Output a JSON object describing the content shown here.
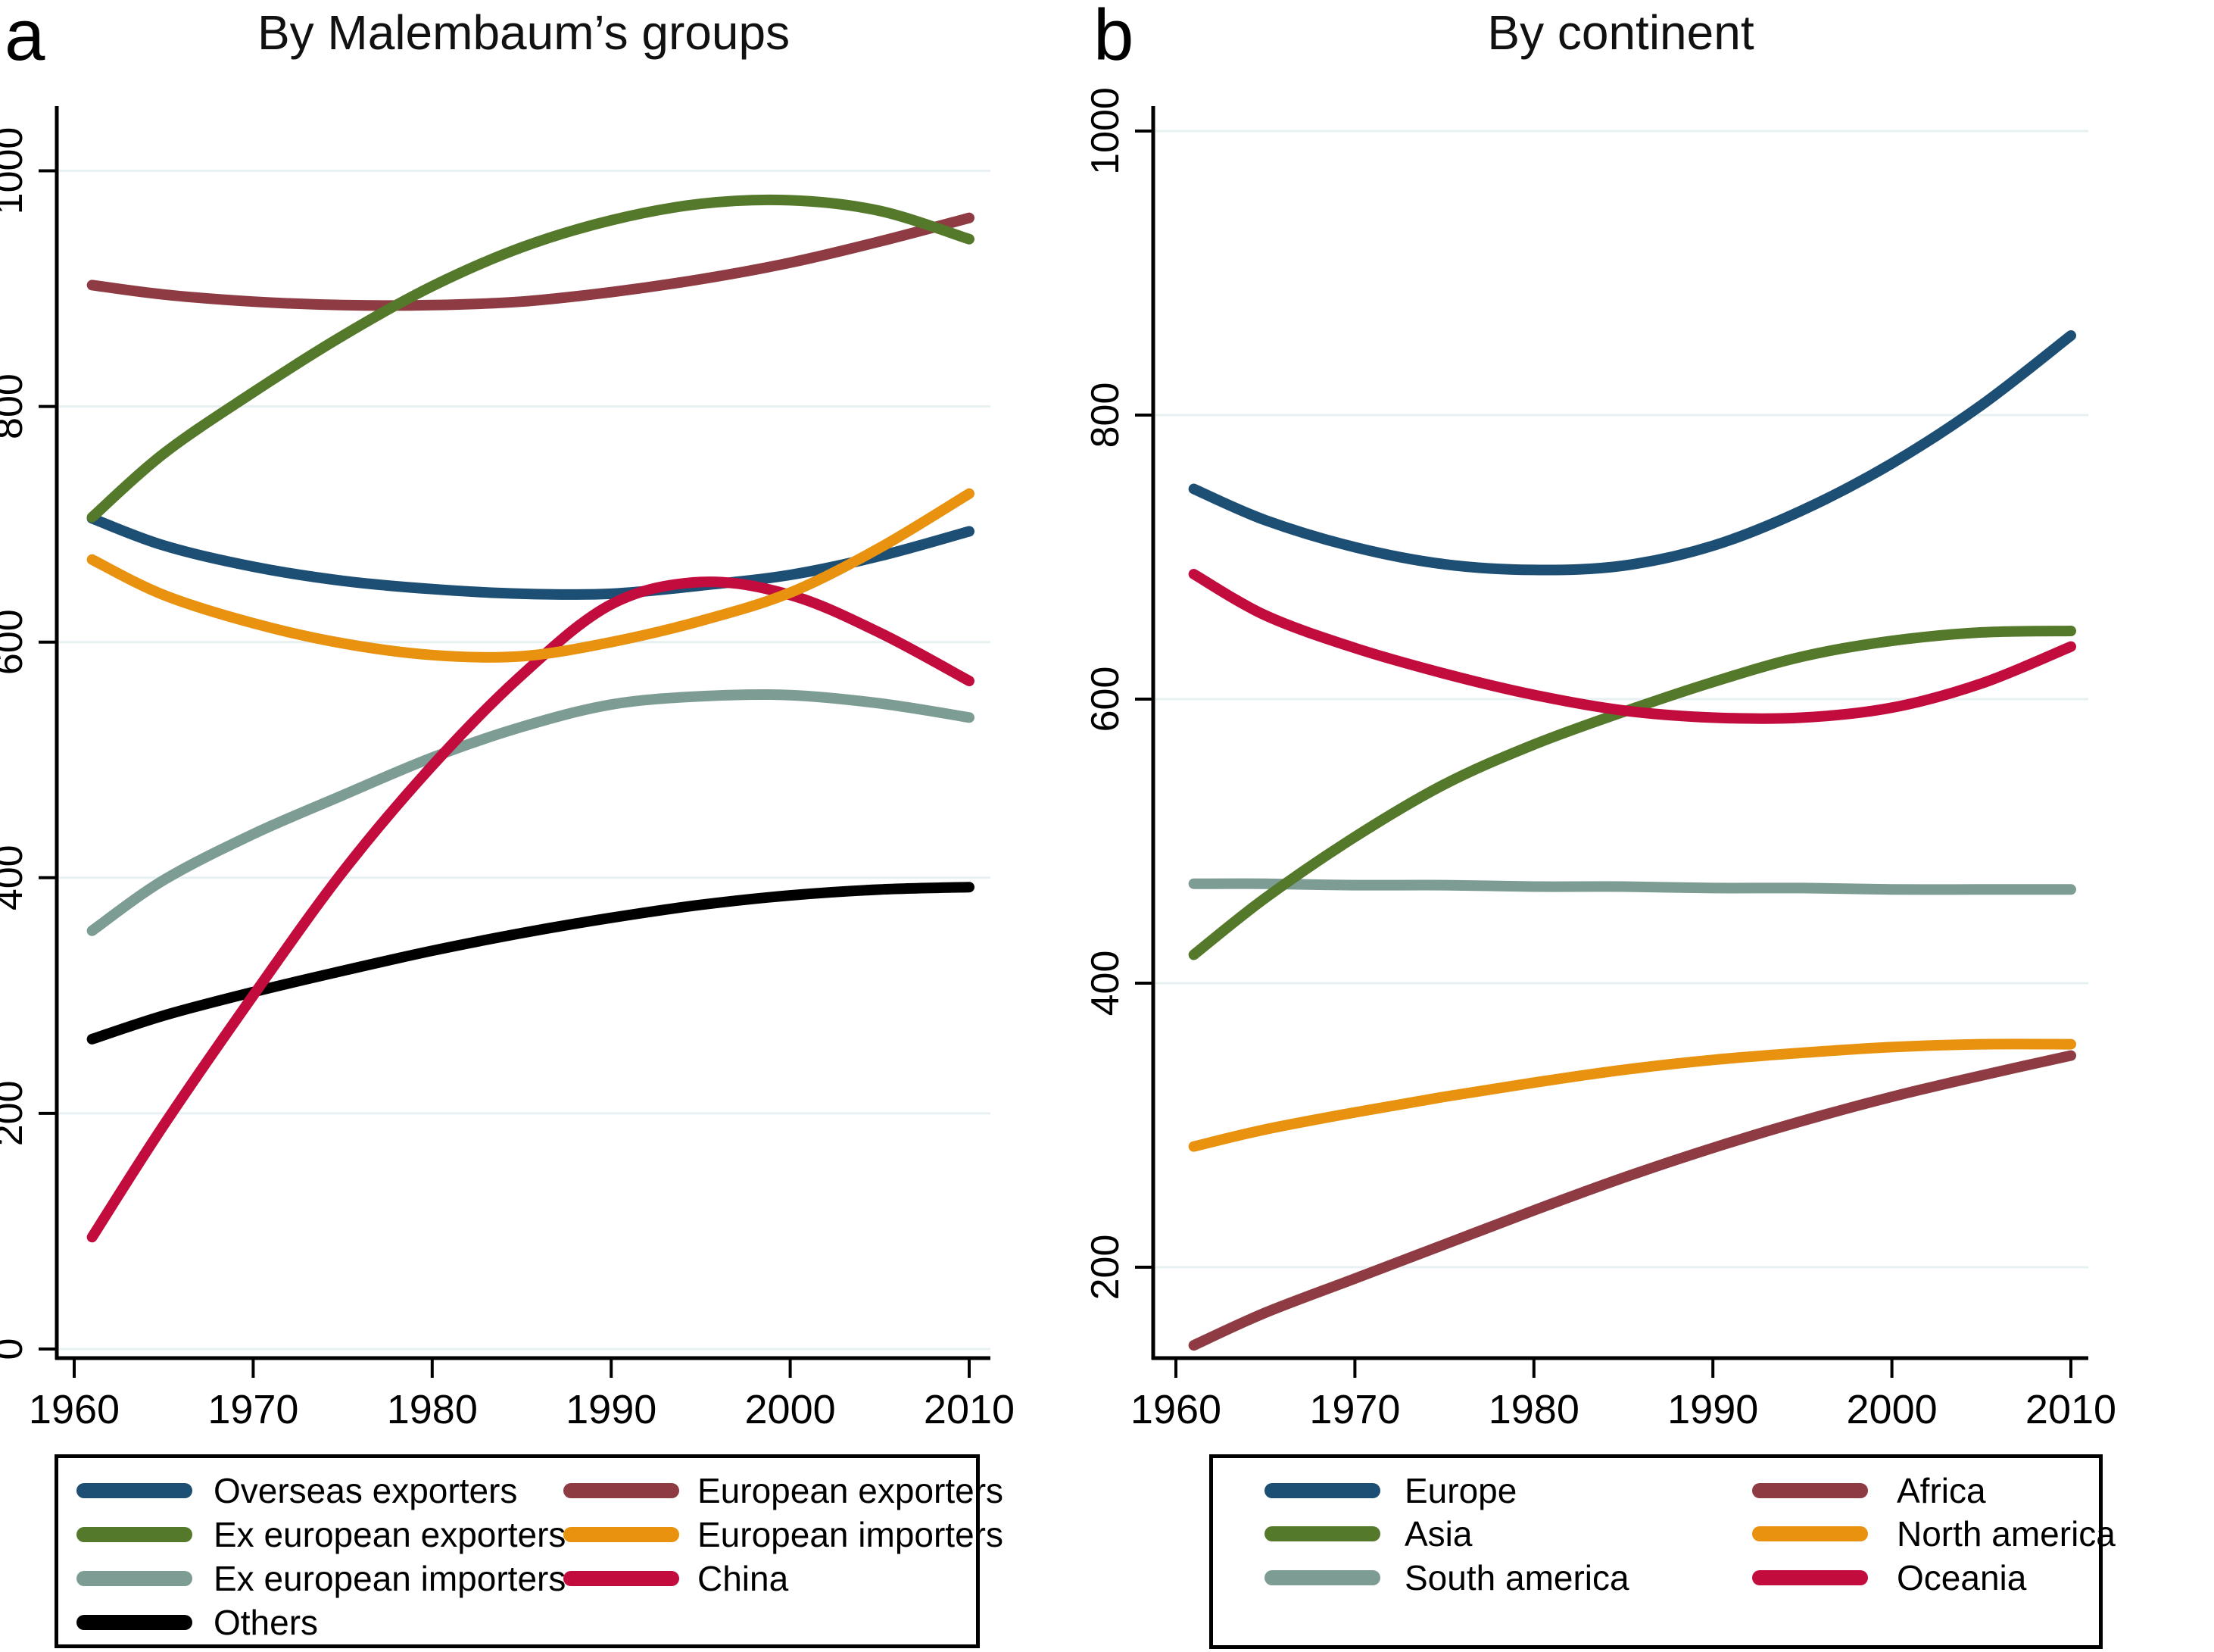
{
  "chart_data": [
    {
      "type": "line",
      "letter": "a",
      "title": "By Malembaum’s groups",
      "x": [
        1961,
        1965,
        1970,
        1975,
        1980,
        1985,
        1990,
        1995,
        2000,
        2005,
        2010
      ],
      "x_ticks": [
        1960,
        1970,
        1980,
        1990,
        2000,
        2010
      ],
      "y_ticks": [
        0,
        200,
        400,
        600,
        800,
        1000
      ],
      "xlim": [
        1960,
        2012
      ],
      "ylim": [
        0,
        1050
      ],
      "grid": true,
      "legend_position": "below",
      "series": [
        {
          "name": "Overseas exporters",
          "color": "#1d4e74",
          "values": [
            705,
            682,
            664,
            652,
            645,
            641,
            641,
            648,
            657,
            673,
            694
          ]
        },
        {
          "name": "Ex european exporters",
          "color": "#55792b",
          "values": [
            706,
            760,
            812,
            860,
            902,
            935,
            958,
            972,
            975,
            966,
            942
          ]
        },
        {
          "name": "Ex european importers",
          "color": "#7d9c94",
          "values": [
            355,
            398,
            437,
            470,
            502,
            528,
            547,
            554,
            555,
            548,
            536
          ]
        },
        {
          "name": "Others",
          "color": "#000000",
          "values": [
            263,
            283,
            303,
            321,
            338,
            353,
            366,
            377,
            385,
            390,
            392
          ]
        },
        {
          "name": "European exporters",
          "color": "#8e3b43",
          "values": [
            903,
            895,
            889,
            886,
            886,
            889,
            897,
            908,
            922,
            940,
            960
          ]
        },
        {
          "name": "European importers",
          "color": "#e8920f",
          "values": [
            670,
            640,
            616,
            599,
            589,
            588,
            600,
            618,
            642,
            680,
            726
          ]
        },
        {
          "name": "China",
          "color": "#c30c3e",
          "values": [
            95,
            190,
            300,
            405,
            495,
            572,
            632,
            651,
            640,
            608,
            567
          ]
        }
      ],
      "legend_columns": [
        [
          0,
          1,
          2,
          3
        ],
        [
          4,
          5,
          6
        ]
      ],
      "draw_order": [
        0,
        4,
        1,
        2,
        3,
        6,
        5
      ]
    },
    {
      "type": "line",
      "letter": "b",
      "title": "By continent",
      "x": [
        1961,
        1965,
        1970,
        1975,
        1980,
        1985,
        1990,
        1995,
        2000,
        2005,
        2010
      ],
      "x_ticks": [
        1960,
        1970,
        1980,
        1990,
        2000,
        2010
      ],
      "y_ticks": [
        200,
        400,
        600,
        800,
        1000
      ],
      "xlim": [
        1960,
        2012
      ],
      "ylim": [
        136,
        1017
      ],
      "grid": true,
      "legend_position": "below",
      "series": [
        {
          "name": "Europe",
          "color": "#1d4e74",
          "values": [
            748,
            726,
            707,
            695,
            691,
            694,
            708,
            733,
            766,
            807,
            856
          ]
        },
        {
          "name": "Asia",
          "color": "#55792b",
          "values": [
            420,
            460,
            503,
            540,
            568,
            591,
            612,
            630,
            641,
            647,
            648
          ]
        },
        {
          "name": "South america",
          "color": "#7d9c94",
          "values": [
            470,
            470,
            469,
            469,
            468,
            468,
            467,
            467,
            466,
            466,
            466
          ]
        },
        {
          "name": "Africa",
          "color": "#8e3b43",
          "values": [
            145,
            168,
            192,
            216,
            240,
            263,
            284,
            303,
            320,
            335,
            349
          ]
        },
        {
          "name": "North america",
          "color": "#e8920f",
          "values": [
            285,
            297,
            309,
            320,
            330,
            339,
            346,
            351,
            355,
            357,
            357
          ]
        },
        {
          "name": "Oceania",
          "color": "#c30c3e",
          "values": [
            688,
            659,
            636,
            618,
            603,
            592,
            587,
            587,
            594,
            611,
            637
          ]
        }
      ],
      "legend_columns": [
        [
          0,
          1,
          2
        ],
        [
          3,
          4,
          5
        ]
      ],
      "draw_order": [
        0,
        2,
        1,
        3,
        4,
        5
      ]
    }
  ],
  "style": {
    "gridline_color": "#e8f1f2",
    "axis_color": "#000000",
    "background": "#ffffff"
  }
}
